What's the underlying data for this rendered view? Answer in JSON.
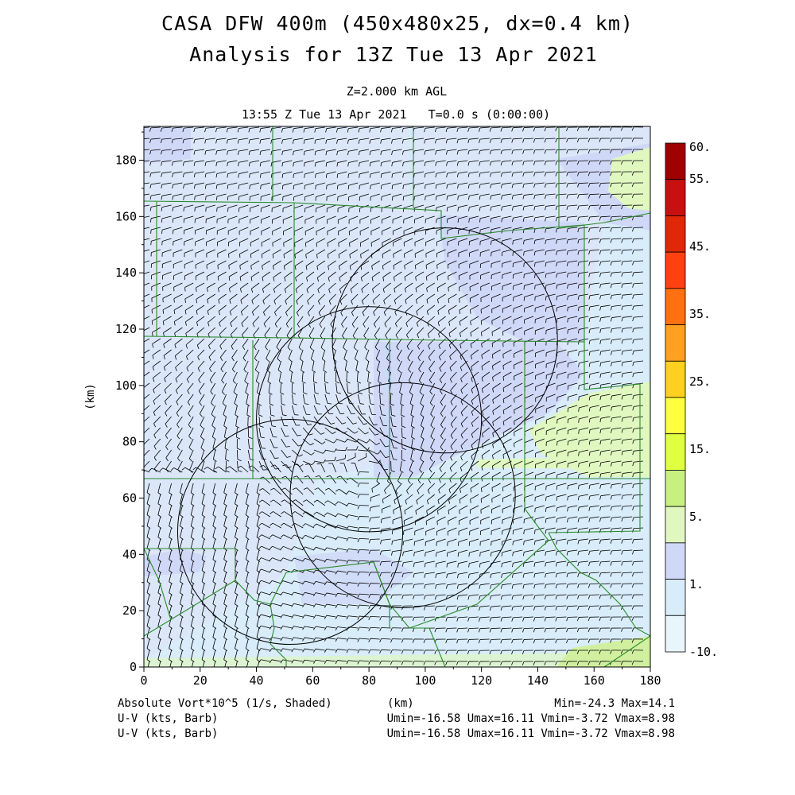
{
  "title_line1": "CASA DFW 400m (450x480x25, dx=0.4 km)",
  "title_line2": "Analysis for 13Z Tue 13 Apr 2021",
  "level_label": "Z=2.000 km AGL",
  "time_label": "13:55 Z Tue 13 Apr 2021   T=0.0 s (0:00:00)",
  "x_axis_label": "(km)",
  "y_axis_label": "(km)",
  "x_ticks": [
    "0",
    "20",
    "40",
    "60",
    "80",
    "100",
    "120",
    "140",
    "160",
    "180"
  ],
  "y_ticks": [
    "0",
    "20",
    "40",
    "60",
    "80",
    "100",
    "120",
    "140",
    "160",
    "180"
  ],
  "colorbar": {
    "labels": [
      "60.",
      "55.",
      "45.",
      "35.",
      "25.",
      "15.",
      "5.",
      "1.",
      "-10."
    ],
    "colors": [
      "#a00000",
      "#c81010",
      "#e02808",
      "#ff4010",
      "#ff7010",
      "#ffa020",
      "#ffd020",
      "#ffff40",
      "#e0ff40",
      "#c8f080",
      "#e0f8c0",
      "#d0d8f8",
      "#d8ecfa",
      "#e8f6fc"
    ]
  },
  "footer": {
    "field_label": "Absolute Vort*10^5 (1/s, Shaded)",
    "x_unit": "(km)",
    "minmax": "Min=-24.3 Max=14.1",
    "wind1_label": "U-V (kts, Barb)",
    "wind1_stats": "Umin=-16.58 Umax=16.11 Vmin=-3.72 Vmax=8.98",
    "wind2_label": "U-V (kts, Barb)",
    "wind2_stats": "Umin=-16.58 Umax=16.11 Vmin=-3.72 Vmax=8.98"
  },
  "radar_rings": [
    {
      "center_km": [
        107,
        116
      ],
      "radius_km": 40
    },
    {
      "center_km": [
        80,
        88
      ],
      "radius_km": 40
    },
    {
      "center_km": [
        92,
        61
      ],
      "radius_km": 40
    },
    {
      "center_km": [
        52,
        48
      ],
      "radius_km": 40
    }
  ]
}
